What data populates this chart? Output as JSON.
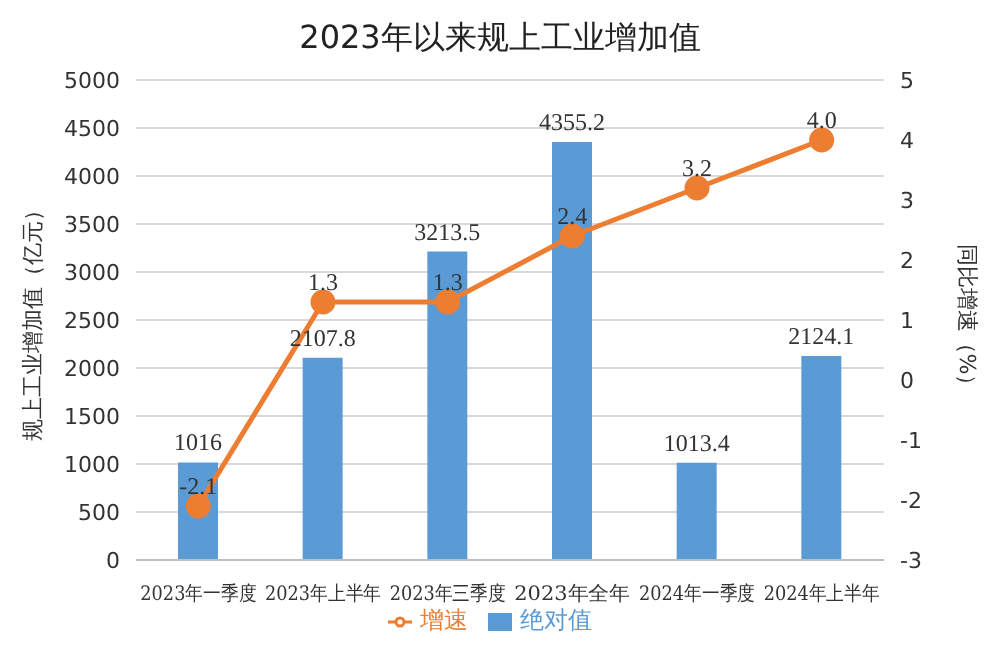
{
  "chart_data": {
    "type": "bar",
    "title": "2023年以来规上工业增加值",
    "ylabel": "规上工业增加值（亿元）",
    "y2label": "同比增速（%）",
    "categories": [
      "2023年一季度",
      "2023年上半年",
      "2023年三季度",
      "2023年全年",
      "2024年一季度",
      "2024年上半年"
    ],
    "series": [
      {
        "name": "绝对值",
        "color": "#5b9bd5",
        "values": [
          1016,
          2107.8,
          3213.5,
          4355.2,
          1013.4,
          2124.1
        ],
        "value_labels": [
          "1016",
          "2107.8",
          "3213.5",
          "4355.2",
          "1013.4",
          "2124.1"
        ]
      },
      {
        "name": "增速",
        "type": "line",
        "axis": "y2",
        "color": "#ed7d31",
        "marker": "circle",
        "values": [
          -2.1,
          1.3,
          1.3,
          2.4,
          3.2,
          4.0
        ],
        "value_labels": [
          "-2.1",
          "1.3",
          "1.3",
          "2.4",
          "3.2",
          "4.0"
        ]
      }
    ],
    "ylim": [
      0,
      5000
    ],
    "yticks": [
      0,
      500,
      1000,
      1500,
      2000,
      2500,
      3000,
      3500,
      4000,
      4500,
      5000
    ],
    "y2lim": [
      -3,
      5
    ],
    "y2ticks": [
      -3,
      -2,
      -1,
      0,
      1,
      2,
      3,
      4,
      5
    ],
    "grid": "y",
    "legend": "bottom"
  }
}
